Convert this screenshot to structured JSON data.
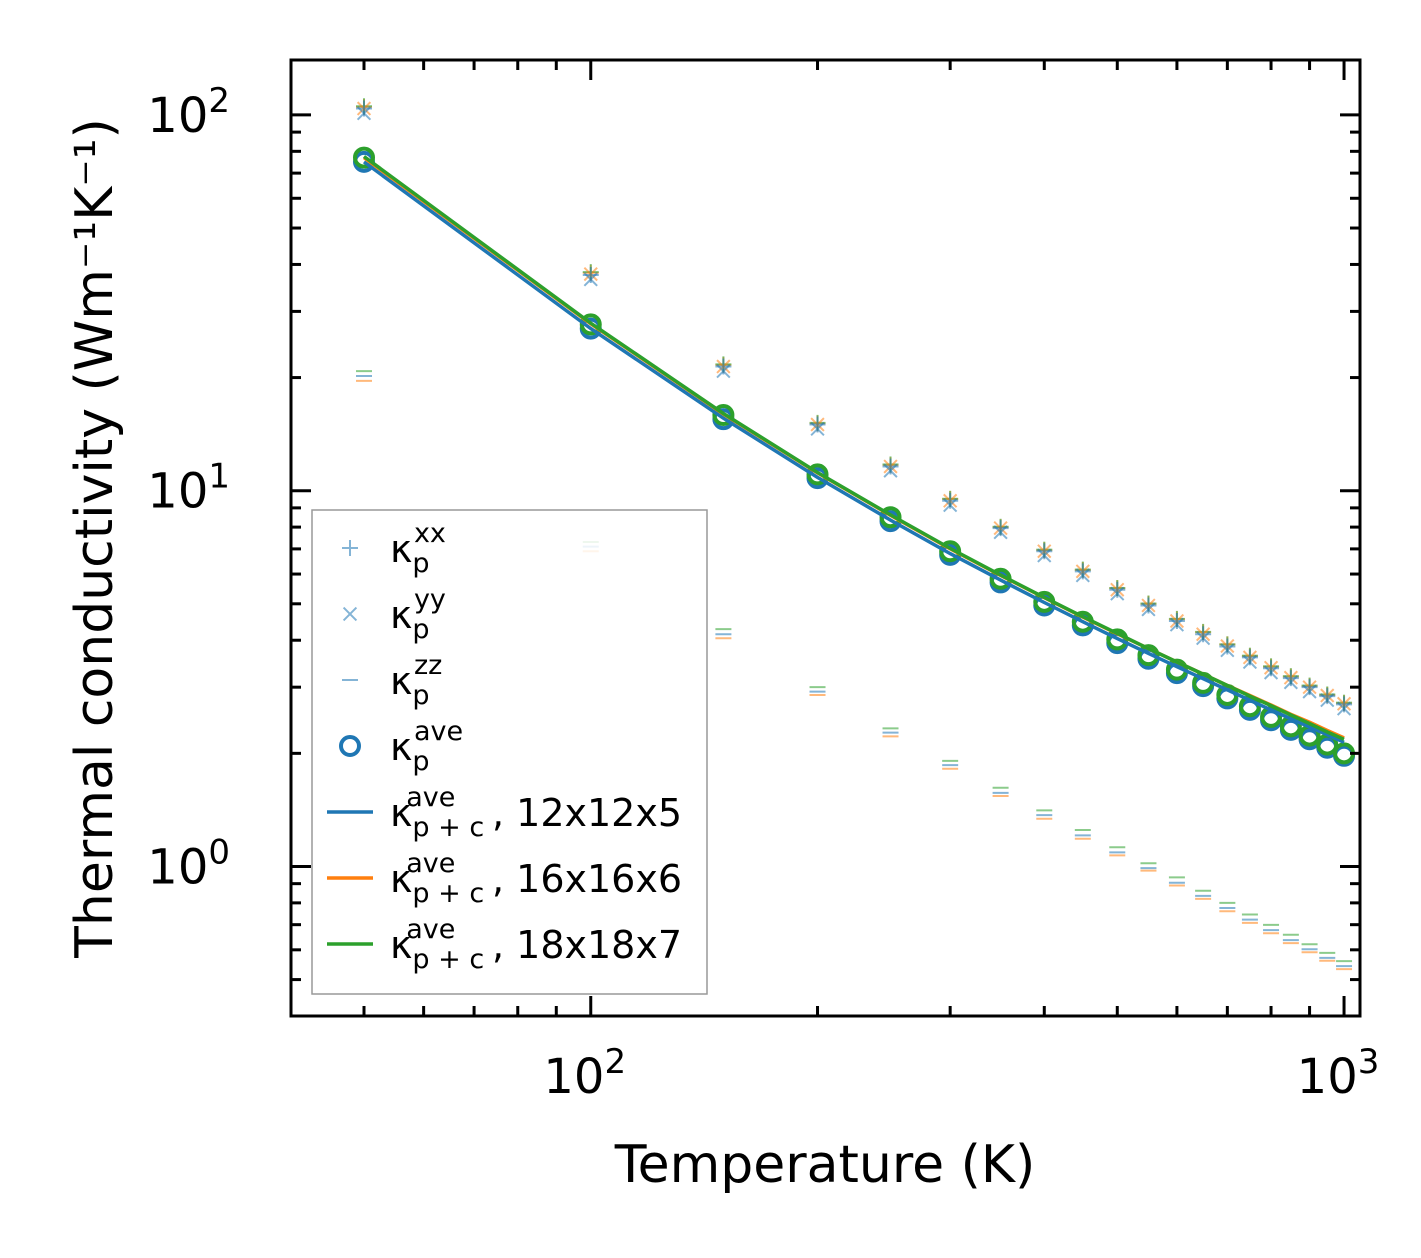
{
  "chart_data": {
    "type": "scatter",
    "title": "",
    "xlabel": "Temperature (K)",
    "ylabel": "Thermal conductivity (Wm⁻¹K⁻¹)",
    "xscale": "log",
    "yscale": "log",
    "xlim": [
      40,
      1050
    ],
    "ylim": [
      0.4,
      140
    ],
    "x_ticks": [
      {
        "value": 100,
        "base": "10",
        "exp": "2"
      },
      {
        "value": 1000,
        "base": "10",
        "exp": "3"
      }
    ],
    "y_ticks": [
      {
        "value": 1,
        "base": "10",
        "exp": "0"
      },
      {
        "value": 10,
        "base": "10",
        "exp": "1"
      },
      {
        "value": 100,
        "base": "10",
        "exp": "2"
      }
    ],
    "legend_position": "lower-left",
    "temperatures": [
      50,
      100,
      150,
      200,
      250,
      300,
      350,
      400,
      450,
      500,
      550,
      600,
      650,
      700,
      750,
      800,
      850,
      900,
      950,
      1000
    ],
    "series": [
      {
        "name": "kp_xx",
        "marker": "plus",
        "color": "#1f77b4",
        "values": [
          104,
          37.5,
          21.4,
          15.0,
          11.6,
          9.4,
          7.95,
          6.9,
          6.1,
          5.45,
          4.95,
          4.5,
          4.15,
          3.85,
          3.6,
          3.37,
          3.17,
          3.0,
          2.84,
          2.7
        ]
      },
      {
        "name": "kp_yy",
        "marker": "cross",
        "color": "#1f77b4",
        "values": [
          101,
          36.5,
          20.8,
          14.6,
          11.3,
          9.15,
          7.75,
          6.72,
          5.95,
          5.32,
          4.83,
          4.4,
          4.05,
          3.76,
          3.5,
          3.28,
          3.09,
          2.92,
          2.77,
          2.63
        ]
      },
      {
        "name": "kp_zz",
        "marker": "hline",
        "color": "#1f77b4",
        "values": [
          20.2,
          7.1,
          4.15,
          2.92,
          2.27,
          1.86,
          1.57,
          1.37,
          1.21,
          1.09,
          0.99,
          0.905,
          0.835,
          0.775,
          0.722,
          0.677,
          0.637,
          0.602,
          0.571,
          0.543
        ]
      },
      {
        "name": "kp_ave",
        "marker": "circle",
        "color": "#1f77b4",
        "values": [
          75.0,
          27.0,
          15.5,
          10.8,
          8.3,
          6.75,
          5.7,
          4.95,
          4.38,
          3.93,
          3.57,
          3.27,
          3.02,
          2.8,
          2.61,
          2.45,
          2.31,
          2.18,
          2.07,
          1.97
        ]
      },
      {
        "name": "kp_ave_green",
        "marker": "circle",
        "color": "#2ca02c",
        "values": [
          77.0,
          27.7,
          15.9,
          11.05,
          8.5,
          6.9,
          5.83,
          5.06,
          4.48,
          4.02,
          3.65,
          3.34,
          3.08,
          2.86,
          2.67,
          2.5,
          2.36,
          2.23,
          2.11,
          2.0
        ]
      },
      {
        "name": "kpc_12x12x5",
        "line": true,
        "color": "#1f77b4",
        "values": [
          75.0,
          27.0,
          15.6,
          10.85,
          8.35,
          6.8,
          5.78,
          5.04,
          4.48,
          4.04,
          3.69,
          3.4,
          3.16,
          2.95,
          2.77,
          2.61,
          2.47,
          2.35,
          2.24,
          2.14
        ]
      },
      {
        "name": "kpc_16x16x6",
        "line": true,
        "color": "#ff7f0e",
        "values": [
          77.0,
          27.8,
          16.0,
          11.15,
          8.6,
          7.0,
          5.95,
          5.19,
          4.61,
          4.16,
          3.8,
          3.5,
          3.25,
          3.03,
          2.85,
          2.69,
          2.54,
          2.42,
          2.3,
          2.2
        ]
      },
      {
        "name": "kpc_18x18x7",
        "line": true,
        "color": "#2ca02c",
        "values": [
          77.5,
          27.9,
          16.05,
          11.18,
          8.62,
          7.02,
          5.96,
          5.2,
          4.62,
          4.17,
          3.8,
          3.5,
          3.25,
          3.03,
          2.84,
          2.68,
          2.53,
          2.4,
          2.28,
          2.18
        ]
      }
    ],
    "overlay_series": [
      {
        "marker": "plus",
        "color": "#ff7f0e",
        "values": [
          105,
          38.0,
          21.6,
          15.1,
          11.7,
          9.5,
          8.0,
          6.95,
          6.15,
          5.5,
          5.0,
          4.55,
          4.2,
          3.9,
          3.63,
          3.4,
          3.2,
          3.02,
          2.86,
          2.72
        ]
      },
      {
        "marker": "plus",
        "color": "#2ca02c",
        "values": [
          105.5,
          38.2,
          21.7,
          15.15,
          11.75,
          9.52,
          8.02,
          6.97,
          6.17,
          5.51,
          5.01,
          4.56,
          4.21,
          3.9,
          3.64,
          3.41,
          3.21,
          3.03,
          2.87,
          2.73
        ]
      },
      {
        "marker": "cross",
        "color": "#ff7f0e",
        "values": [
          104,
          37.7,
          21.4,
          15.0,
          11.6,
          9.4,
          7.95,
          6.9,
          6.1,
          5.45,
          4.95,
          4.5,
          4.15,
          3.86,
          3.6,
          3.38,
          3.18,
          3.0,
          2.85,
          2.71
        ]
      },
      {
        "marker": "hline",
        "color": "#ff7f0e",
        "values": [
          19.6,
          6.9,
          4.05,
          2.86,
          2.22,
          1.82,
          1.54,
          1.34,
          1.185,
          1.07,
          0.975,
          0.89,
          0.82,
          0.76,
          0.708,
          0.664,
          0.625,
          0.591,
          0.561,
          0.533
        ]
      },
      {
        "marker": "hline",
        "color": "#2ca02c",
        "values": [
          20.8,
          7.3,
          4.28,
          3.0,
          2.33,
          1.91,
          1.62,
          1.41,
          1.25,
          1.125,
          1.02,
          0.935,
          0.862,
          0.8,
          0.745,
          0.699,
          0.658,
          0.621,
          0.589,
          0.56
        ]
      }
    ],
    "legend": [
      {
        "symbol": "plus",
        "color": "#1f77b4",
        "kappa": "κ",
        "sub": "p",
        "sup": "xx",
        "suffix": ""
      },
      {
        "symbol": "cross",
        "color": "#1f77b4",
        "kappa": "κ",
        "sub": "p",
        "sup": "yy",
        "suffix": ""
      },
      {
        "symbol": "hline",
        "color": "#1f77b4",
        "kappa": "κ",
        "sub": "p",
        "sup": "zz",
        "suffix": ""
      },
      {
        "symbol": "circle",
        "color": "#1f77b4",
        "kappa": "κ",
        "sub": "p",
        "sup": "ave",
        "suffix": ""
      },
      {
        "symbol": "line",
        "color": "#1f77b4",
        "kappa": "κ",
        "sub": "p + c",
        "sup": "ave",
        "suffix": ", 12x12x5"
      },
      {
        "symbol": "line",
        "color": "#ff7f0e",
        "kappa": "κ",
        "sub": "p + c",
        "sup": "ave",
        "suffix": ", 16x16x6"
      },
      {
        "symbol": "line",
        "color": "#2ca02c",
        "kappa": "κ",
        "sub": "p + c",
        "sup": "ave",
        "suffix": ", 18x18x7"
      }
    ]
  }
}
